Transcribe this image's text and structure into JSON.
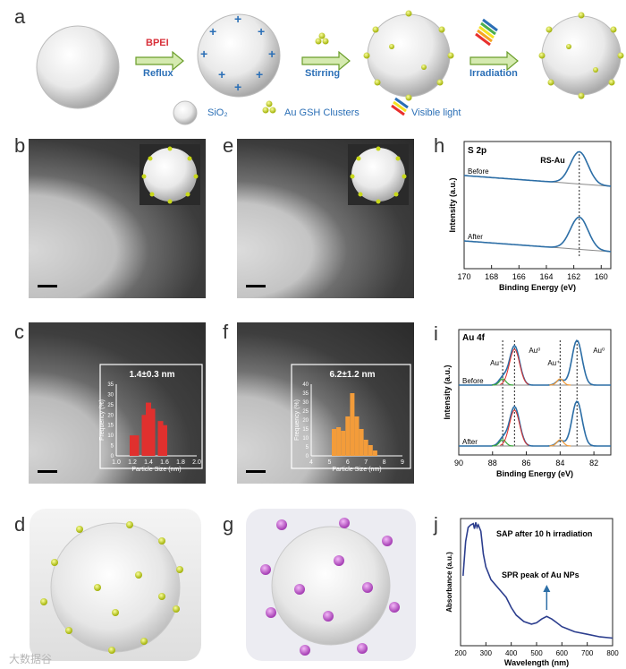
{
  "panel_labels": {
    "a": "a",
    "b": "b",
    "c": "c",
    "d": "d",
    "e": "e",
    "f": "f",
    "g": "g",
    "h": "h",
    "i": "i",
    "j": "j"
  },
  "scheme": {
    "bpei": "BPEI",
    "reflux": "Reflux",
    "stirring": "Stirring",
    "irradiation": "Irradiation",
    "legend_sio2": "SiO₂",
    "legend_au": "Au GSH Clusters",
    "legend_light": "Visible light"
  },
  "inset_c": {
    "title": "1.4±0.3 nm"
  },
  "inset_f": {
    "title": "6.2±1.2 nm"
  },
  "watermark": "大数据谷",
  "chart_data": [
    {
      "id": "c_inset",
      "type": "bar",
      "title": "1.4±0.3 nm",
      "xlabel": "Particle Size (nm)",
      "ylabel": "Frequency (%)",
      "xticks": [
        "1.0",
        "1.2",
        "1.4",
        "1.6",
        "1.8",
        "2.0"
      ],
      "yticks": [
        "0",
        "5",
        "10",
        "15",
        "20",
        "25",
        "30",
        "35"
      ],
      "xlim": [
        1.0,
        2.0
      ],
      "ylim": [
        0,
        35
      ],
      "x": [
        1.2,
        1.25,
        1.35,
        1.4,
        1.45,
        1.55,
        1.6
      ],
      "values": [
        10,
        10,
        20,
        26,
        23,
        17,
        15
      ],
      "color": "#e0302e"
    },
    {
      "id": "f_inset",
      "type": "bar",
      "title": "6.2±1.2 nm",
      "xlabel": "Particle Size (nm)",
      "ylabel": "Frequency (%)",
      "xticks": [
        "4",
        "5",
        "6",
        "7",
        "8",
        "9"
      ],
      "yticks": [
        "0",
        "5",
        "10",
        "15",
        "20",
        "25",
        "30",
        "35",
        "40"
      ],
      "xlim": [
        4,
        9
      ],
      "ylim": [
        0,
        40
      ],
      "x": [
        5.25,
        5.5,
        5.75,
        6.0,
        6.25,
        6.5,
        6.75,
        7.0,
        7.25,
        7.5
      ],
      "values": [
        15,
        16,
        14,
        22,
        35,
        22,
        15,
        9,
        6,
        3
      ],
      "color": "#f39c3a"
    },
    {
      "id": "h",
      "type": "line",
      "label": "S 2p",
      "xlabel": "Binding Energy (eV)",
      "ylabel": "Intensity (a.u.)",
      "xticks": [
        "170",
        "168",
        "166",
        "164",
        "162",
        "160"
      ],
      "xlim": [
        170,
        159.3
      ],
      "peak_label": "RS-Au",
      "series": [
        {
          "name": "Before",
          "peak": 161.6
        },
        {
          "name": "After",
          "peak": 161.6
        }
      ]
    },
    {
      "id": "i",
      "type": "line",
      "label": "Au 4f",
      "xlabel": "Binding Energy (eV)",
      "ylabel": "Intensity (a.u.)",
      "xticks": [
        "90",
        "88",
        "86",
        "84",
        "82"
      ],
      "xlim": [
        90,
        81
      ],
      "annotations": [
        "Au⁺",
        "Au⁰",
        "Au⁺",
        "Au⁰"
      ],
      "series": [
        {
          "name": "Before"
        },
        {
          "name": "After"
        }
      ]
    },
    {
      "id": "j",
      "type": "line",
      "xlabel": "Wavelength (nm)",
      "ylabel": "Absorbance (a.u.)",
      "xticks": [
        "200",
        "300",
        "400",
        "500",
        "600",
        "700",
        "800"
      ],
      "xlim": [
        200,
        800
      ],
      "annotations": [
        "SAP after 10 h irradiation",
        "SPR peak of Au NPs"
      ],
      "series": [
        {
          "x": [
            210,
            220,
            230,
            240,
            250,
            255,
            260,
            265,
            270,
            280,
            290,
            300,
            320,
            350,
            380,
            400,
            420,
            450,
            480,
            500,
            520,
            540,
            560,
            580,
            600,
            650,
            700,
            750,
            800
          ],
          "y": [
            0.55,
            0.82,
            0.93,
            0.95,
            0.96,
            0.92,
            0.97,
            0.93,
            0.95,
            0.9,
            0.72,
            0.62,
            0.52,
            0.45,
            0.38,
            0.3,
            0.24,
            0.19,
            0.17,
            0.18,
            0.21,
            0.23,
            0.21,
            0.18,
            0.15,
            0.11,
            0.09,
            0.07,
            0.06
          ]
        }
      ]
    }
  ]
}
